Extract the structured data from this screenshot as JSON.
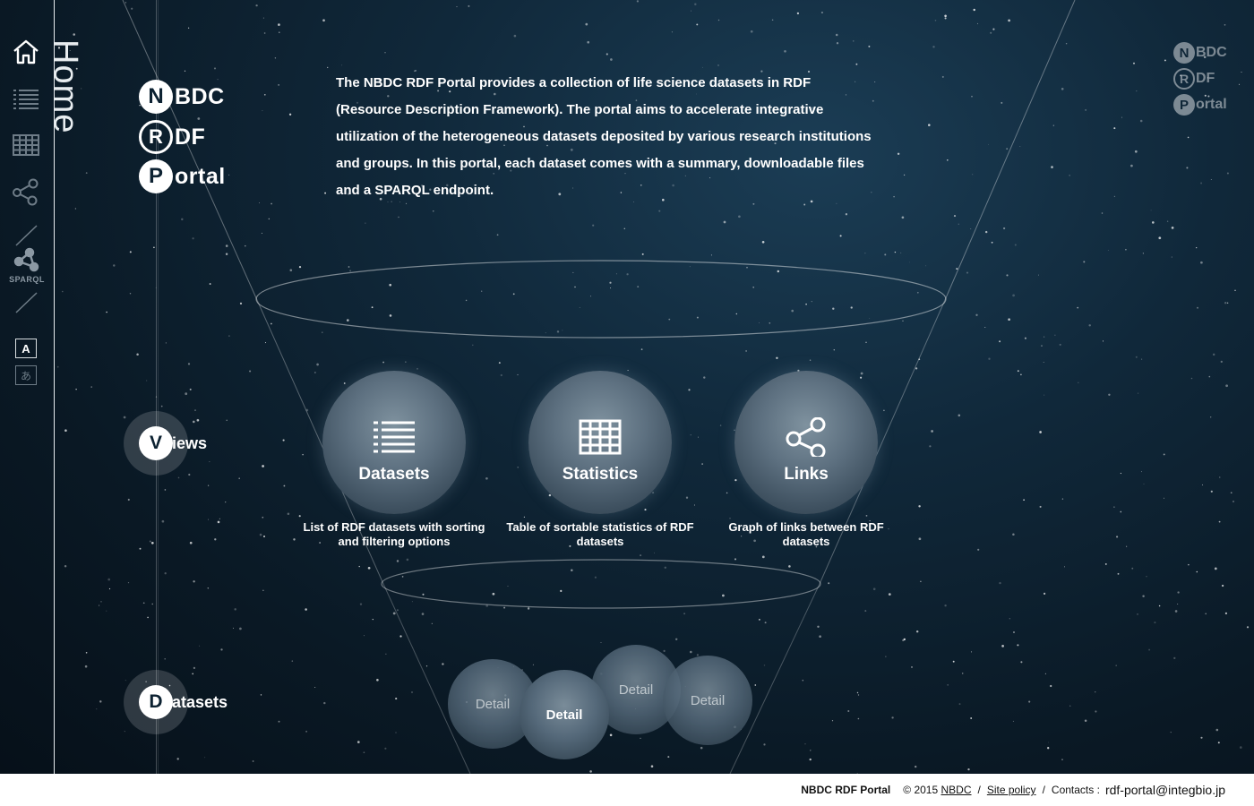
{
  "page": {
    "vertical_title": "Home"
  },
  "logo": {
    "letters": [
      "N",
      "R",
      "P"
    ],
    "words": [
      "BDC",
      "DF",
      "ortal"
    ]
  },
  "intro_text": "The NBDC RDF Portal provides a collection of life science datasets in RDF (Resource Description Framework). The portal aims to accelerate integrative utilization of the heterogeneous datasets deposited by various research institutions and groups. In this portal, each dataset comes with a summary, downloadable files and a SPARQL endpoint.",
  "sidebar": {
    "items": [
      {
        "icon": "home-icon"
      },
      {
        "icon": "list-icon"
      },
      {
        "icon": "table-icon"
      },
      {
        "icon": "graph-icon"
      },
      {
        "icon": "sparql-icon",
        "label": "SPARQL"
      }
    ],
    "lang_en": "A",
    "lang_ja": "あ"
  },
  "sections": {
    "views": {
      "letter": "V",
      "rest": "iews"
    },
    "datasets": {
      "letter": "D",
      "rest": "atasets"
    }
  },
  "views": [
    {
      "label": "Datasets",
      "icon": "list-icon",
      "description": "List of RDF datasets with sorting and filtering options"
    },
    {
      "label": "Statistics",
      "icon": "table-icon",
      "description": "Table of sortable statistics of RDF datasets"
    },
    {
      "label": "Links",
      "icon": "graph-icon",
      "description": "Graph of links between RDF datasets"
    }
  ],
  "details": [
    "Detail",
    "Detail",
    "Detail",
    "Detail"
  ],
  "footer": {
    "brand": "NBDC RDF Portal",
    "copyright": "© 2015",
    "org_link": "NBDC",
    "site_policy": "Site policy",
    "contacts_label": "Contacts :",
    "email": "rdf-portal@integbio.jp"
  },
  "colors": {
    "background": "#0a1925",
    "accent": "#ffffff"
  }
}
